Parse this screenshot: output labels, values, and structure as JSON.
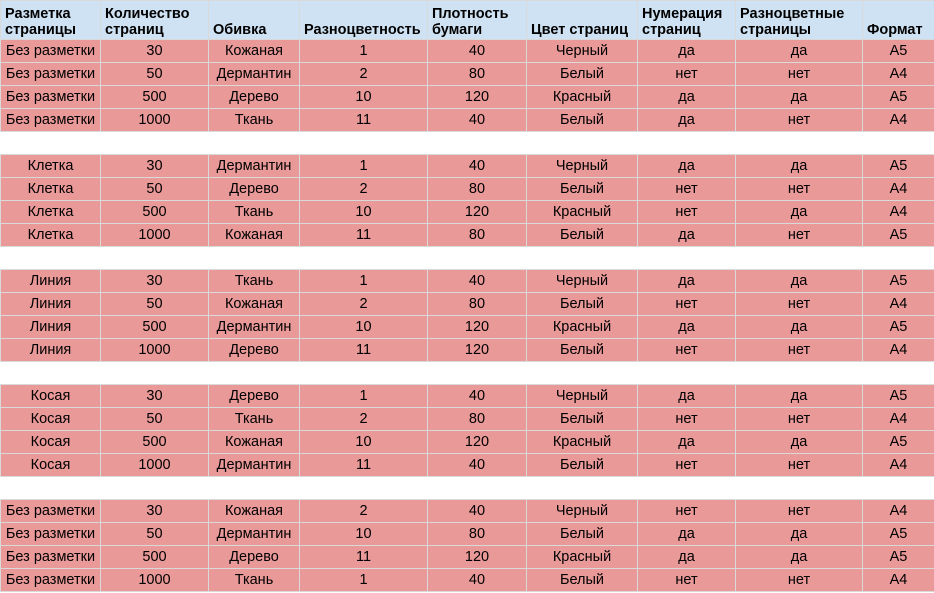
{
  "headers": [
    "Разметка страницы",
    "Количество страниц",
    "Обивка",
    "Разноцветность",
    "Плотность бумаги",
    "Цвет страниц",
    "Нумерация страниц",
    "Разноцветные страницы",
    "Формат"
  ],
  "colors": {
    "header_bg": "#cfe2f3",
    "row_bg": "#ea9999",
    "blank_bg": "#ffffff"
  },
  "rows": [
    [
      "Без разметки",
      "30",
      "Кожаная",
      "1",
      "40",
      "Черный",
      "да",
      "да",
      "A5"
    ],
    [
      "Без разметки",
      "50",
      "Дермантин",
      "2",
      "80",
      "Белый",
      "нет",
      "нет",
      "A4"
    ],
    [
      "Без разметки",
      "500",
      "Дерево",
      "10",
      "120",
      "Красный",
      "да",
      "да",
      "A5"
    ],
    [
      "Без разметки",
      "1000",
      "Ткань",
      "11",
      "40",
      "Белый",
      "да",
      "нет",
      "A4"
    ],
    null,
    [
      "Клетка",
      "30",
      "Дермантин",
      "1",
      "40",
      "Черный",
      "да",
      "да",
      "A5"
    ],
    [
      "Клетка",
      "50",
      "Дерево",
      "2",
      "80",
      "Белый",
      "нет",
      "нет",
      "A4"
    ],
    [
      "Клетка",
      "500",
      "Ткань",
      "10",
      "120",
      "Красный",
      "нет",
      "да",
      "A4"
    ],
    [
      "Клетка",
      "1000",
      "Кожаная",
      "11",
      "80",
      "Белый",
      "да",
      "нет",
      "A5"
    ],
    null,
    [
      "Линия",
      "30",
      "Ткань",
      "1",
      "40",
      "Черный",
      "да",
      "да",
      "A5"
    ],
    [
      "Линия",
      "50",
      "Кожаная",
      "2",
      "80",
      "Белый",
      "нет",
      "нет",
      "A4"
    ],
    [
      "Линия",
      "500",
      "Дермантин",
      "10",
      "120",
      "Красный",
      "да",
      "да",
      "A5"
    ],
    [
      "Линия",
      "1000",
      "Дерево",
      "11",
      "120",
      "Белый",
      "нет",
      "нет",
      "A4"
    ],
    null,
    [
      "Косая",
      "30",
      "Дерево",
      "1",
      "40",
      "Черный",
      "да",
      "да",
      "A5"
    ],
    [
      "Косая",
      "50",
      "Ткань",
      "2",
      "80",
      "Белый",
      "нет",
      "нет",
      "A4"
    ],
    [
      "Косая",
      "500",
      "Кожаная",
      "10",
      "120",
      "Красный",
      "да",
      "да",
      "A5"
    ],
    [
      "Косая",
      "1000",
      "Дермантин",
      "11",
      "40",
      "Белый",
      "нет",
      "нет",
      "A4"
    ],
    null,
    [
      "Без разметки",
      "30",
      "Кожаная",
      "2",
      "40",
      "Черный",
      "нет",
      "нет",
      "A4"
    ],
    [
      "Без разметки",
      "50",
      "Дермантин",
      "10",
      "80",
      "Белый",
      "да",
      "да",
      "A5"
    ],
    [
      "Без разметки",
      "500",
      "Дерево",
      "11",
      "120",
      "Красный",
      "да",
      "да",
      "A5"
    ],
    [
      "Без разметки",
      "1000",
      "Ткань",
      "1",
      "40",
      "Белый",
      "нет",
      "нет",
      "A4"
    ]
  ]
}
